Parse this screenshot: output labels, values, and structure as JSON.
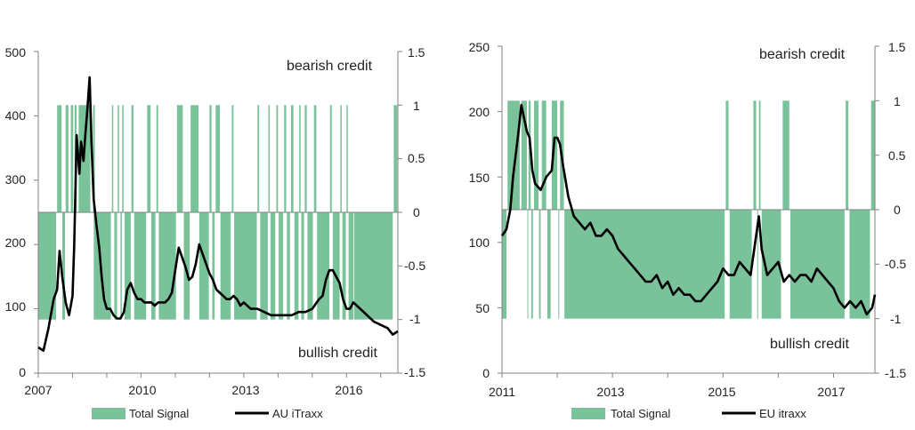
{
  "colors": {
    "signal": "#79c29a",
    "line": "#000000",
    "axis": "#808080"
  },
  "chart_data": [
    {
      "type": "bar+line",
      "xlim": [
        2007.0,
        2017.5
      ],
      "x_ticks": [
        "2007",
        "2010",
        "2013",
        "2016"
      ],
      "x_tick_values": [
        2007,
        2010,
        2013,
        2016
      ],
      "y_left": {
        "lim": [
          0,
          500
        ],
        "ticks": [
          "0",
          "100",
          "200",
          "300",
          "400",
          "500"
        ]
      },
      "y_right": {
        "lim": [
          -1.5,
          1.5
        ],
        "ticks": [
          "1.5",
          "1",
          "0.5",
          "0",
          "-0.5",
          "-1",
          "-1.5"
        ]
      },
      "annotations": {
        "top": "bearish credit",
        "bottom": "bullish credit"
      },
      "legend": {
        "bar_label": "Total Signal",
        "line_label": "AU iTraxx"
      },
      "signal_plus_one_periods": [
        [
          2007.55,
          2007.68
        ],
        [
          2007.8,
          2007.88
        ],
        [
          2007.95,
          2008.02
        ],
        [
          2008.06,
          2008.12
        ],
        [
          2008.18,
          2008.52
        ],
        [
          2008.6,
          2008.65
        ],
        [
          2009.15,
          2009.19
        ],
        [
          2009.32,
          2009.36
        ],
        [
          2009.45,
          2009.49
        ],
        [
          2009.72,
          2009.78
        ],
        [
          2010.18,
          2010.28
        ],
        [
          2010.45,
          2010.5
        ],
        [
          2011.05,
          2011.22
        ],
        [
          2011.45,
          2011.68
        ],
        [
          2012.0,
          2012.06
        ],
        [
          2012.18,
          2012.3
        ],
        [
          2012.65,
          2012.7
        ],
        [
          2013.4,
          2013.45
        ],
        [
          2013.72,
          2013.76
        ],
        [
          2013.95,
          2014.0
        ],
        [
          2014.18,
          2014.24
        ],
        [
          2014.38,
          2014.45
        ],
        [
          2014.62,
          2014.66
        ],
        [
          2014.78,
          2014.84
        ],
        [
          2015.05,
          2015.12
        ],
        [
          2015.52,
          2015.57
        ],
        [
          2015.82,
          2015.86
        ],
        [
          2016.0,
          2016.04
        ],
        [
          2017.38,
          2017.48
        ]
      ],
      "signal_minus_one_periods": [
        [
          2007.0,
          2007.52
        ],
        [
          2007.7,
          2007.78
        ],
        [
          2008.62,
          2009.12
        ],
        [
          2009.22,
          2009.3
        ],
        [
          2009.4,
          2009.44
        ],
        [
          2009.52,
          2009.7
        ],
        [
          2009.8,
          2010.15
        ],
        [
          2010.3,
          2010.42
        ],
        [
          2010.52,
          2011.02
        ],
        [
          2011.25,
          2011.42
        ],
        [
          2011.7,
          2011.98
        ],
        [
          2012.08,
          2012.15
        ],
        [
          2012.32,
          2012.62
        ],
        [
          2012.72,
          2013.38
        ],
        [
          2013.48,
          2013.7
        ],
        [
          2013.78,
          2013.92
        ],
        [
          2014.02,
          2014.15
        ],
        [
          2014.26,
          2014.35
        ],
        [
          2014.48,
          2014.6
        ],
        [
          2014.68,
          2014.76
        ],
        [
          2014.86,
          2015.02
        ],
        [
          2015.14,
          2015.5
        ],
        [
          2015.6,
          2015.8
        ],
        [
          2015.88,
          2015.98
        ],
        [
          2016.06,
          2016.2
        ],
        [
          2016.22,
          2017.35
        ]
      ],
      "series": [
        {
          "name": "AU iTraxx",
          "x": [
            2007.0,
            2007.15,
            2007.3,
            2007.45,
            2007.55,
            2007.62,
            2007.7,
            2007.8,
            2007.9,
            2008.0,
            2008.05,
            2008.12,
            2008.2,
            2008.25,
            2008.32,
            2008.38,
            2008.42,
            2008.5,
            2008.56,
            2008.62,
            2008.7,
            2008.78,
            2008.85,
            2008.92,
            2009.0,
            2009.1,
            2009.2,
            2009.3,
            2009.4,
            2009.5,
            2009.6,
            2009.7,
            2009.8,
            2009.9,
            2010.0,
            2010.1,
            2010.2,
            2010.3,
            2010.4,
            2010.5,
            2010.6,
            2010.7,
            2010.8,
            2010.9,
            2011.0,
            2011.1,
            2011.2,
            2011.3,
            2011.4,
            2011.5,
            2011.6,
            2011.7,
            2011.8,
            2011.9,
            2012.0,
            2012.1,
            2012.2,
            2012.3,
            2012.4,
            2012.5,
            2012.6,
            2012.7,
            2012.8,
            2012.9,
            2013.0,
            2013.2,
            2013.4,
            2013.6,
            2013.8,
            2014.0,
            2014.2,
            2014.4,
            2014.6,
            2014.8,
            2015.0,
            2015.2,
            2015.3,
            2015.4,
            2015.5,
            2015.6,
            2015.7,
            2015.8,
            2015.9,
            2016.0,
            2016.1,
            2016.2,
            2016.4,
            2016.6,
            2016.8,
            2017.0,
            2017.2,
            2017.35,
            2017.5
          ],
          "values": [
            40,
            35,
            70,
            115,
            130,
            190,
            150,
            110,
            90,
            120,
            200,
            370,
            310,
            360,
            330,
            375,
            400,
            460,
            350,
            270,
            230,
            195,
            150,
            115,
            100,
            100,
            90,
            85,
            85,
            95,
            130,
            140,
            125,
            115,
            115,
            110,
            110,
            110,
            105,
            110,
            110,
            110,
            115,
            125,
            160,
            195,
            180,
            165,
            145,
            150,
            170,
            200,
            185,
            170,
            155,
            145,
            130,
            125,
            120,
            115,
            115,
            120,
            115,
            105,
            110,
            100,
            100,
            95,
            90,
            90,
            90,
            90,
            95,
            95,
            100,
            115,
            120,
            145,
            160,
            160,
            150,
            140,
            115,
            100,
            100,
            110,
            100,
            90,
            80,
            75,
            70,
            60,
            65
          ]
        }
      ]
    },
    {
      "type": "bar+line",
      "xlim": [
        2011.0,
        2017.75
      ],
      "x_ticks": [
        "2011",
        "2013",
        "2015",
        "2017"
      ],
      "x_tick_values": [
        2011,
        2013,
        2015,
        2017
      ],
      "y_left": {
        "lim": [
          0,
          250
        ],
        "ticks": [
          "0",
          "50",
          "100",
          "150",
          "200",
          "250"
        ]
      },
      "y_right": {
        "lim": [
          -1.5,
          1.5
        ],
        "ticks": [
          "1.5",
          "1",
          "0.5",
          "0",
          "-0.5",
          "-1",
          "-1.5"
        ]
      },
      "annotations": {
        "top": "bearish credit",
        "bottom": "bullish credit"
      },
      "legend": {
        "bar_label": "Total Signal",
        "line_label": "EU itraxx"
      },
      "signal_plus_one_periods": [
        [
          2011.1,
          2011.32
        ],
        [
          2011.35,
          2011.45
        ],
        [
          2011.48,
          2011.52
        ],
        [
          2011.58,
          2011.66
        ],
        [
          2011.72,
          2011.8
        ],
        [
          2011.9,
          2012.0
        ],
        [
          2012.05,
          2012.12
        ],
        [
          2015.05,
          2015.1
        ],
        [
          2015.55,
          2015.6
        ],
        [
          2015.65,
          2015.68
        ],
        [
          2016.08,
          2016.2
        ],
        [
          2017.22,
          2017.27
        ],
        [
          2017.68,
          2017.75
        ]
      ],
      "signal_minus_one_periods": [
        [
          2011.0,
          2011.08
        ],
        [
          2011.46,
          2011.47
        ],
        [
          2011.53,
          2011.56
        ],
        [
          2011.67,
          2011.7
        ],
        [
          2011.82,
          2011.88
        ],
        [
          2012.02,
          2012.03
        ],
        [
          2012.13,
          2015.03
        ],
        [
          2015.12,
          2015.52
        ],
        [
          2015.62,
          2015.63
        ],
        [
          2015.7,
          2016.05
        ],
        [
          2016.22,
          2017.2
        ],
        [
          2017.29,
          2017.66
        ]
      ],
      "series": [
        {
          "name": "EU itraxx",
          "x": [
            2011.0,
            2011.08,
            2011.15,
            2011.2,
            2011.3,
            2011.35,
            2011.4,
            2011.45,
            2011.5,
            2011.55,
            2011.6,
            2011.7,
            2011.8,
            2011.9,
            2011.95,
            2012.0,
            2012.05,
            2012.1,
            2012.2,
            2012.3,
            2012.4,
            2012.5,
            2012.6,
            2012.7,
            2012.8,
            2012.9,
            2013.0,
            2013.1,
            2013.2,
            2013.3,
            2013.4,
            2013.5,
            2013.6,
            2013.7,
            2013.8,
            2013.9,
            2014.0,
            2014.1,
            2014.2,
            2014.3,
            2014.4,
            2014.5,
            2014.6,
            2014.7,
            2014.8,
            2014.9,
            2015.0,
            2015.1,
            2015.2,
            2015.3,
            2015.4,
            2015.5,
            2015.6,
            2015.65,
            2015.7,
            2015.8,
            2015.9,
            2016.0,
            2016.1,
            2016.2,
            2016.3,
            2016.4,
            2016.5,
            2016.6,
            2016.7,
            2016.8,
            2016.9,
            2017.0,
            2017.1,
            2017.2,
            2017.3,
            2017.4,
            2017.5,
            2017.6,
            2017.7,
            2017.75
          ],
          "values": [
            105,
            110,
            125,
            150,
            185,
            205,
            195,
            185,
            180,
            155,
            145,
            140,
            150,
            155,
            180,
            180,
            175,
            160,
            135,
            120,
            115,
            110,
            115,
            105,
            105,
            110,
            105,
            95,
            90,
            85,
            80,
            75,
            70,
            70,
            75,
            65,
            70,
            60,
            65,
            60,
            60,
            55,
            55,
            60,
            65,
            70,
            80,
            75,
            75,
            85,
            80,
            75,
            105,
            120,
            95,
            75,
            80,
            85,
            70,
            75,
            70,
            75,
            75,
            70,
            80,
            75,
            70,
            65,
            55,
            50,
            55,
            50,
            55,
            45,
            50,
            60
          ]
        }
      ]
    }
  ]
}
